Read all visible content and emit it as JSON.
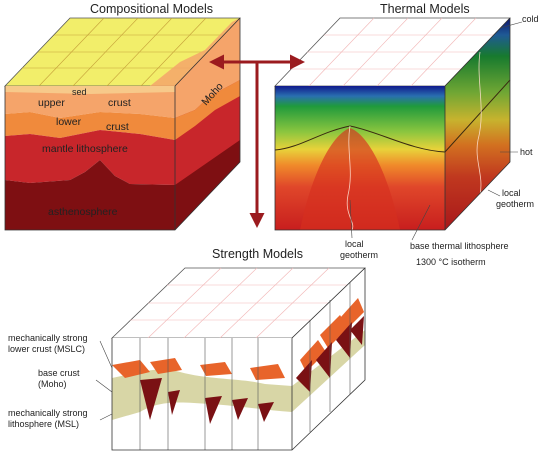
{
  "titles": {
    "compositional": "Compositional Models",
    "thermal": "Thermal Models",
    "strength": "Strength Models"
  },
  "compositional_labels": {
    "sed": "sed",
    "upper": "upper",
    "crust1": "crust",
    "lower": "lower",
    "crust2": "crust",
    "moho": "Moho",
    "mantle": "mantle lithosphere",
    "asthenosphere": "asthenosphere"
  },
  "thermal_labels": {
    "cold": "cold",
    "hot": "hot",
    "local_geotherm_right_1": "local",
    "local_geotherm_right_2": "geotherm",
    "local_geotherm_left_1": "local",
    "local_geotherm_left_2": "geotherm",
    "base_thermal_1": "base thermal lithosphere",
    "base_thermal_2": "1300 °C isotherm"
  },
  "strength_labels": {
    "mslc_1": "mechanically  strong",
    "mslc_2": "lower crust (MSLC)",
    "base_crust_1": "base crust",
    "base_crust_2": "(Moho)",
    "msl_1": "mechanically  strong",
    "msl_2": "lithosphere (MSL)"
  },
  "colors": {
    "arrow": "#9b1b1f",
    "surface_yellow": "#f2ee6a",
    "upper_crust": "#f5a46a",
    "lower_crust": "#f08a3c",
    "mantle": "#c8262b",
    "asthenosphere": "#7e0f12",
    "thermal_top": "#101a8c",
    "thermal_hot": "#c81e1e",
    "strength_band": "#d8d6a6",
    "strength_dark": "#7a1114"
  }
}
